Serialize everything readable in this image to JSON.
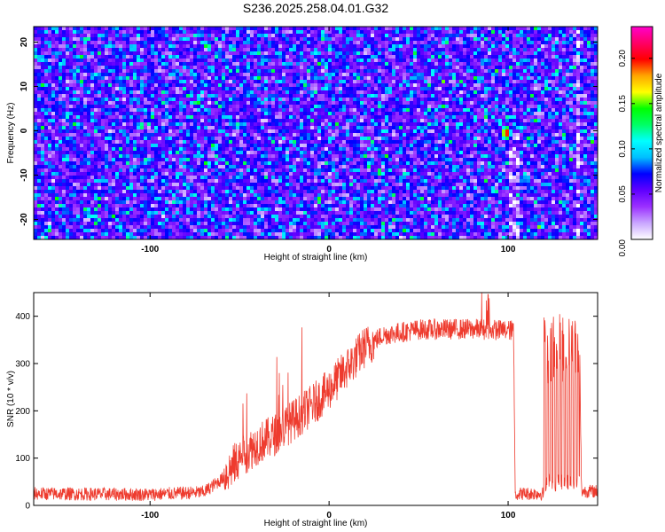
{
  "title": "S236.2025.258.04.01.G32",
  "chart_data": [
    {
      "type": "heatmap",
      "xlabel": "Height of straight line (km)",
      "ylabel": "Frequency (Hz)",
      "xlim": [
        -165,
        150
      ],
      "ylim": [
        -24.5,
        23.5
      ],
      "xticks": [
        -100,
        0,
        100
      ],
      "yticks": [
        -20,
        -10,
        0,
        10,
        20
      ],
      "colorbar": {
        "label": "Normalized spectral amplitude",
        "range": [
          0,
          0.235
        ],
        "ticks": [
          0.0,
          0.05,
          0.1,
          0.15,
          0.2
        ],
        "tick_labels": [
          "0.00",
          "0.05",
          "0.10",
          "0.15",
          "0.20"
        ],
        "colors": [
          "#ffffff",
          "#c9a6ff",
          "#9b30ff",
          "#5f00ff",
          "#0000ff",
          "#00bfff",
          "#00ffff",
          "#00ff66",
          "#00ff00",
          "#ffff00",
          "#ffa500",
          "#ff0000",
          "#ff0066",
          "#ff00cc"
        ]
      },
      "hotspots": [
        {
          "x": 99,
          "y": -0.5,
          "value": 0.21
        },
        {
          "x": -48,
          "y": 1.5,
          "value": 0.1
        },
        {
          "x": -150,
          "y": 14,
          "value": 0.09
        },
        {
          "x": 15,
          "y": -5,
          "value": 0.08
        }
      ]
    },
    {
      "type": "line",
      "xlabel": "Height of straight line (km)",
      "ylabel": "SNR (10 * v/v)",
      "xlim": [
        -165,
        150
      ],
      "ylim": [
        0,
        450
      ],
      "xticks": [
        -100,
        0,
        100
      ],
      "yticks": [
        0,
        100,
        200,
        300,
        400
      ],
      "color": "#ee3b2e",
      "trend": [
        [
          -165,
          25
        ],
        [
          -100,
          23
        ],
        [
          -70,
          28
        ],
        [
          -60,
          55
        ],
        [
          -50,
          100
        ],
        [
          -40,
          130
        ],
        [
          -30,
          150
        ],
        [
          -20,
          180
        ],
        [
          -10,
          210
        ],
        [
          0,
          245
        ],
        [
          10,
          290
        ],
        [
          20,
          335
        ],
        [
          30,
          360
        ],
        [
          50,
          372
        ],
        [
          80,
          373
        ],
        [
          103,
          370
        ],
        [
          104,
          25
        ],
        [
          120,
          25
        ],
        [
          125,
          320
        ],
        [
          140,
          320
        ],
        [
          141,
          30
        ],
        [
          150,
          30
        ]
      ]
    }
  ]
}
